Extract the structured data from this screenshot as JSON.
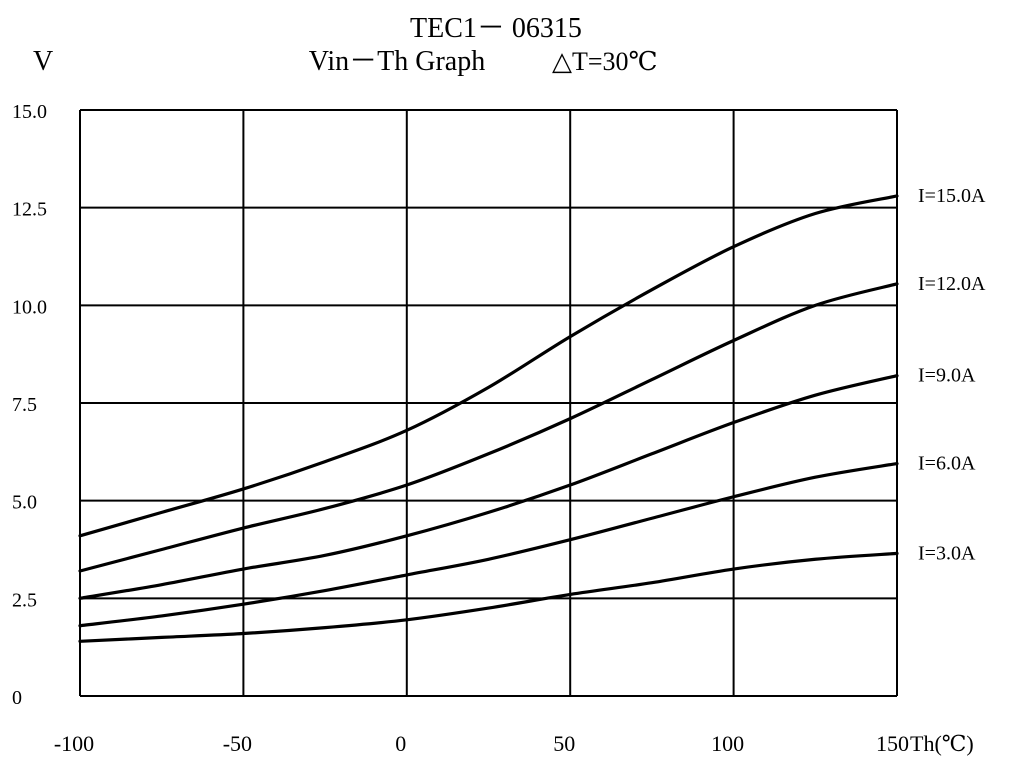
{
  "chart_data": {
    "type": "line",
    "title": "TEC1－ 06315",
    "subtitle_left": "Vin－Th Graph",
    "subtitle_right": "△T=30℃",
    "ylabel": "V",
    "xlabel": "Th(℃)",
    "xlim": [
      -100,
      150
    ],
    "ylim": [
      0,
      15
    ],
    "x_ticks": [
      -100,
      -50,
      0,
      50,
      100,
      150
    ],
    "x_tick_labels": [
      "-100",
      "-50",
      "0",
      "50",
      "100",
      "150"
    ],
    "y_ticks": [
      0,
      2.5,
      5,
      7.5,
      10,
      12.5,
      15
    ],
    "y_tick_labels": [
      "0",
      "2.5",
      "5.0",
      "7.5",
      "10.0",
      "12.5",
      "15.0"
    ],
    "grid": true,
    "x": [
      -100,
      -75,
      -50,
      -25,
      0,
      25,
      50,
      75,
      100,
      125,
      150
    ],
    "series": [
      {
        "name": "I=15.0A",
        "values": [
          4.1,
          4.7,
          5.3,
          6.0,
          6.8,
          7.9,
          9.2,
          10.4,
          11.5,
          12.35,
          12.8
        ]
      },
      {
        "name": "I=12.0A",
        "values": [
          3.2,
          3.75,
          4.3,
          4.8,
          5.4,
          6.2,
          7.1,
          8.1,
          9.1,
          10.0,
          10.55
        ]
      },
      {
        "name": "I=9.0A",
        "values": [
          2.5,
          2.85,
          3.25,
          3.6,
          4.1,
          4.7,
          5.4,
          6.2,
          7.0,
          7.7,
          8.2
        ]
      },
      {
        "name": "I=6.0A",
        "values": [
          1.8,
          2.05,
          2.35,
          2.7,
          3.1,
          3.5,
          4.0,
          4.55,
          5.1,
          5.6,
          5.95
        ]
      },
      {
        "name": "I=3.0A",
        "values": [
          1.4,
          1.5,
          1.6,
          1.75,
          1.95,
          2.25,
          2.6,
          2.9,
          3.25,
          3.5,
          3.65
        ]
      }
    ]
  }
}
